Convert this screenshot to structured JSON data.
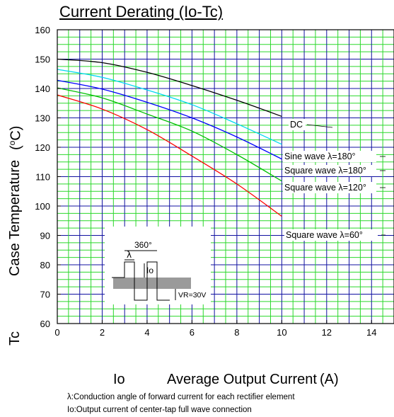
{
  "chart_data": {
    "type": "line",
    "title": "Current Derating  (Io-Tc)",
    "xlabel_symbol": "Io",
    "xlabel": "Average Output Current",
    "xunit": "(A)",
    "ylabel_symbol": "Tc",
    "ylabel": "Case Temperature",
    "yunit_prefix": "(",
    "yunit_sup": "o",
    "yunit_suffix": "C)",
    "xlim": [
      0,
      15
    ],
    "ylim": [
      60,
      160
    ],
    "xticks": [
      "0",
      "2",
      "4",
      "6",
      "8",
      "10",
      "12",
      "14"
    ],
    "yticks": [
      "60",
      "70",
      "80",
      "90",
      "100",
      "110",
      "120",
      "130",
      "140",
      "150",
      "160"
    ],
    "grid": true,
    "series": [
      {
        "name": "DC",
        "color": "#000000",
        "x": [
          0,
          2,
          4,
          6,
          8,
          9,
          10
        ],
        "y": [
          150,
          148.8,
          145.5,
          141,
          136,
          133.3,
          130.5
        ]
      },
      {
        "name": "Sine wave  λ=180°",
        "color": "#00d8f0",
        "x": [
          0,
          2,
          4,
          6,
          8,
          10
        ],
        "y": [
          146.5,
          143.8,
          139.5,
          134.5,
          128,
          121
        ]
      },
      {
        "name": "Square wave  λ=180°",
        "color": "#0000ff",
        "x": [
          0,
          2,
          4,
          6,
          8,
          10
        ],
        "y": [
          142.8,
          139.8,
          135.3,
          130,
          123.5,
          116
        ]
      },
      {
        "name": "Square wave  λ=120°",
        "color": "#00c000",
        "x": [
          0,
          2,
          4,
          6,
          8,
          10
        ],
        "y": [
          140.2,
          136.8,
          131.3,
          125.5,
          117.5,
          108.5
        ]
      },
      {
        "name": "Square wave  λ=60°",
        "color": "#ff0000",
        "x": [
          0,
          2,
          4,
          6,
          8,
          10
        ],
        "y": [
          137.8,
          133,
          126,
          117,
          107.5,
          96.5
        ]
      }
    ],
    "annotations": [
      "λ:Conduction angle of forward current for each rectifier element",
      "Io:Output current of center-tap full wave connection"
    ],
    "inset": {
      "angle_label": "360°",
      "lambda_label": "λ",
      "current_label": "Io",
      "voltage_label": "VR=30V"
    }
  },
  "colors": {
    "grid_green": "#2bd82b",
    "grid_blue": "#1010a0",
    "axis": "#000000"
  }
}
